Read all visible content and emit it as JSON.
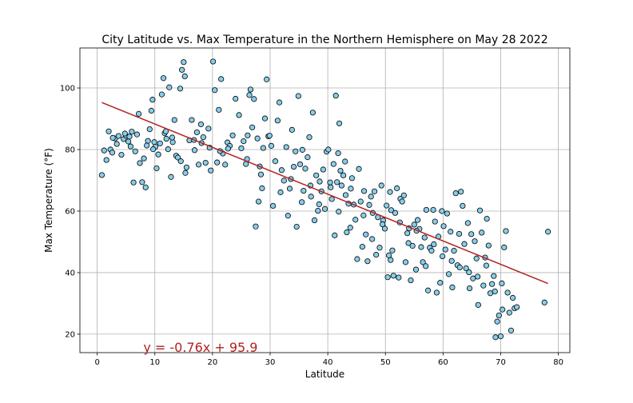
{
  "chart_data": {
    "type": "scatter",
    "title": "City Latitude vs. Max Temperature in the Northern Hemisphere on May 28 2022",
    "xlabel": "Latitude",
    "ylabel": "Max Temperature (°F)",
    "xlim": [
      -3,
      82
    ],
    "ylim": [
      14,
      113
    ],
    "xticks": [
      0,
      10,
      20,
      30,
      40,
      50,
      60,
      70,
      80
    ],
    "yticks": [
      20,
      40,
      60,
      80,
      100
    ],
    "grid": true,
    "marker_face": "#87ceeb",
    "marker_edge": "#000000",
    "regression": {
      "slope": -0.76,
      "intercept": 95.9,
      "x_range": [
        0.8,
        78.2
      ],
      "color": "#b22222",
      "equation": "y = -0.76x + 95.9"
    },
    "points": [
      [
        0.8,
        71.7
      ],
      [
        1.2,
        79.7
      ],
      [
        1.6,
        76.6
      ],
      [
        2.0,
        85.9
      ],
      [
        2.3,
        80.0
      ],
      [
        2.6,
        79.0
      ],
      [
        3.1,
        83.6
      ],
      [
        3.4,
        81.8
      ],
      [
        3.7,
        84.4
      ],
      [
        4.2,
        78.3
      ],
      [
        4.6,
        83.4
      ],
      [
        5.0,
        84.5
      ],
      [
        5.4,
        82.6
      ],
      [
        5.8,
        81.0
      ],
      [
        6.0,
        85.8
      ],
      [
        6.3,
        69.3
      ],
      [
        6.6,
        79.4
      ],
      [
        6.9,
        84.9
      ],
      [
        7.2,
        91.6
      ],
      [
        7.4,
        75.6
      ],
      [
        7.8,
        69.4
      ],
      [
        8.1,
        77.1
      ],
      [
        8.4,
        67.7
      ],
      [
        8.8,
        82.8
      ],
      [
        9.1,
        86.6
      ],
      [
        9.4,
        92.6
      ],
      [
        9.6,
        96.2
      ],
      [
        9.9,
        82.4
      ],
      [
        10.1,
        80.9
      ],
      [
        10.3,
        73.9
      ],
      [
        10.6,
        78.4
      ],
      [
        10.9,
        82.0
      ],
      [
        11.2,
        97.9
      ],
      [
        11.5,
        103.2
      ],
      [
        11.7,
        85.3
      ],
      [
        12.0,
        83.5
      ],
      [
        12.3,
        80.1
      ],
      [
        12.5,
        100.2
      ],
      [
        12.8,
        71.1
      ],
      [
        13.1,
        82.4
      ],
      [
        13.4,
        89.6
      ],
      [
        13.7,
        78.0
      ],
      [
        14.0,
        77.4
      ],
      [
        14.4,
        99.8
      ],
      [
        14.7,
        105.9
      ],
      [
        15.0,
        108.4
      ],
      [
        15.2,
        103.8
      ],
      [
        15.5,
        74.2
      ],
      [
        16.0,
        83.0
      ],
      [
        16.4,
        89.6
      ],
      [
        16.8,
        83.1
      ],
      [
        17.3,
        85.6
      ],
      [
        17.6,
        75.1
      ],
      [
        18.0,
        88.2
      ],
      [
        18.4,
        84.0
      ],
      [
        18.8,
        75.7
      ],
      [
        19.3,
        86.8
      ],
      [
        19.7,
        73.2
      ],
      [
        20.1,
        108.6
      ],
      [
        20.4,
        99.3
      ],
      [
        20.8,
        75.8
      ],
      [
        21.1,
        92.9
      ],
      [
        21.5,
        102.9
      ],
      [
        21.8,
        78.7
      ],
      [
        22.2,
        75.1
      ],
      [
        22.6,
        82.3
      ],
      [
        23.0,
        81.2
      ],
      [
        23.5,
        84.6
      ],
      [
        24.0,
        96.5
      ],
      [
        24.6,
        91.2
      ],
      [
        25.0,
        80.4
      ],
      [
        25.4,
        82.7
      ],
      [
        25.8,
        75.3
      ],
      [
        26.1,
        84.6
      ],
      [
        26.4,
        97.7
      ],
      [
        26.6,
        99.5
      ],
      [
        26.9,
        87.2
      ],
      [
        27.2,
        96.4
      ],
      [
        27.5,
        55.0
      ],
      [
        27.8,
        83.6
      ],
      [
        28.0,
        63.1
      ],
      [
        28.2,
        74.5
      ],
      [
        28.4,
        71.9
      ],
      [
        28.6,
        67.4
      ],
      [
        28.8,
        80.5
      ],
      [
        29.1,
        90.1
      ],
      [
        29.4,
        102.8
      ],
      [
        29.7,
        84.3
      ],
      [
        30.2,
        81.2
      ],
      [
        30.5,
        61.7
      ],
      [
        30.9,
        76.2
      ],
      [
        31.3,
        89.4
      ],
      [
        31.6,
        95.3
      ],
      [
        32.0,
        73.3
      ],
      [
        32.4,
        69.9
      ],
      [
        32.8,
        80.8
      ],
      [
        33.1,
        58.5
      ],
      [
        33.4,
        67.3
      ],
      [
        33.8,
        86.4
      ],
      [
        34.1,
        74.4
      ],
      [
        34.4,
        79.4
      ],
      [
        34.6,
        54.9
      ],
      [
        34.9,
        97.4
      ],
      [
        35.2,
        75.2
      ],
      [
        35.5,
        62.9
      ],
      [
        35.8,
        66.6
      ],
      [
        36.1,
        73.8
      ],
      [
        36.5,
        77.5
      ],
      [
        36.8,
        84.0
      ],
      [
        37.1,
        64.7
      ],
      [
        37.4,
        92.0
      ],
      [
        37.7,
        57.0
      ],
      [
        38.0,
        71.6
      ],
      [
        38.3,
        60.1
      ],
      [
        38.6,
        69.6
      ],
      [
        38.9,
        66.4
      ],
      [
        39.2,
        73.5
      ],
      [
        39.5,
        60.7
      ],
      [
        39.8,
        79.3
      ],
      [
        40.1,
        80.0
      ],
      [
        40.4,
        69.3
      ],
      [
        40.7,
        63.9
      ],
      [
        41.0,
        75.3
      ],
      [
        41.2,
        52.1
      ],
      [
        41.4,
        97.5
      ],
      [
        41.6,
        69.4
      ],
      [
        41.8,
        78.8
      ],
      [
        42.0,
        88.5
      ],
      [
        42.2,
        73.1
      ],
      [
        42.4,
        68.3
      ],
      [
        42.7,
        71.6
      ],
      [
        43.0,
        76.1
      ],
      [
        43.3,
        53.1
      ],
      [
        43.6,
        62.4
      ],
      [
        43.9,
        54.6
      ],
      [
        44.2,
        70.7
      ],
      [
        44.5,
        62.1
      ],
      [
        44.8,
        57.2
      ],
      [
        45.1,
        44.4
      ],
      [
        45.4,
        73.7
      ],
      [
        45.7,
        63.1
      ],
      [
        46.0,
        48.4
      ],
      [
        46.3,
        66.5
      ],
      [
        46.6,
        52.4
      ],
      [
        46.9,
        43.7
      ],
      [
        47.2,
        62.0
      ],
      [
        47.5,
        64.7
      ],
      [
        47.8,
        59.4
      ],
      [
        48.1,
        66.4
      ],
      [
        48.4,
        45.8
      ],
      [
        48.7,
        58.0
      ],
      [
        49.0,
        48.1
      ],
      [
        49.3,
        68.3
      ],
      [
        49.6,
        57.0
      ],
      [
        49.9,
        54.3
      ],
      [
        50.2,
        61.8
      ],
      [
        50.4,
        38.5
      ],
      [
        50.6,
        45.6
      ],
      [
        50.8,
        66.2
      ],
      [
        51.0,
        60.3
      ],
      [
        51.2,
        47.2
      ],
      [
        51.4,
        39.0
      ],
      [
        51.7,
        59.4
      ],
      [
        52.0,
        67.4
      ],
      [
        52.3,
        38.4
      ],
      [
        52.6,
        64.0
      ],
      [
        52.9,
        63.1
      ],
      [
        53.2,
        65.1
      ],
      [
        53.5,
        43.4
      ],
      [
        53.8,
        52.8
      ],
      [
        54.1,
        54.4
      ],
      [
        54.4,
        37.5
      ],
      [
        54.7,
        48.7
      ],
      [
        55.0,
        55.6
      ],
      [
        55.3,
        41.0
      ],
      [
        55.6,
        57.1
      ],
      [
        55.9,
        54.2
      ],
      [
        56.2,
        48.3
      ],
      [
        56.5,
        43.4
      ],
      [
        56.8,
        51.4
      ],
      [
        57.1,
        60.4
      ],
      [
        57.4,
        34.2
      ],
      [
        57.7,
        48.1
      ],
      [
        58.0,
        47.1
      ],
      [
        58.3,
        60.4
      ],
      [
        58.6,
        56.6
      ],
      [
        58.9,
        33.5
      ],
      [
        59.2,
        51.7
      ],
      [
        59.5,
        36.7
      ],
      [
        59.8,
        60.0
      ],
      [
        60.1,
        55.1
      ],
      [
        60.4,
        47.5
      ],
      [
        60.7,
        59.2
      ],
      [
        61.0,
        39.5
      ],
      [
        61.3,
        53.3
      ],
      [
        61.6,
        35.2
      ],
      [
        61.9,
        47.1
      ],
      [
        62.2,
        65.8
      ],
      [
        62.5,
        42.4
      ],
      [
        62.8,
        52.6
      ],
      [
        63.1,
        66.3
      ],
      [
        63.4,
        61.7
      ],
      [
        63.7,
        49.3
      ],
      [
        64.0,
        41.4
      ],
      [
        64.3,
        56.1
      ],
      [
        64.6,
        34.9
      ],
      [
        64.9,
        52.5
      ],
      [
        65.2,
        38.1
      ],
      [
        65.5,
        50.2
      ],
      [
        65.8,
        44.6
      ],
      [
        66.1,
        29.5
      ],
      [
        66.4,
        60.2
      ],
      [
        66.7,
        53.0
      ],
      [
        67.0,
        35.8
      ],
      [
        67.3,
        44.9
      ],
      [
        67.6,
        57.5
      ],
      [
        67.9,
        48.8
      ],
      [
        68.2,
        33.3
      ],
      [
        68.5,
        36.3
      ],
      [
        68.8,
        38.9
      ],
      [
        69.1,
        19.0
      ],
      [
        69.4,
        24.1
      ],
      [
        69.7,
        26.1
      ],
      [
        70.0,
        19.3
      ],
      [
        70.3,
        28.0
      ],
      [
        70.6,
        48.2
      ],
      [
        70.9,
        53.5
      ],
      [
        71.2,
        33.5
      ],
      [
        71.5,
        27.0
      ],
      [
        71.8,
        21.2
      ],
      [
        72.1,
        31.8
      ],
      [
        72.4,
        28.4
      ],
      [
        72.8,
        28.8
      ],
      [
        77.6,
        30.3
      ],
      [
        78.2,
        53.3
      ],
      [
        2.7,
        83.8
      ],
      [
        4.8,
        85.2
      ],
      [
        5.6,
        84.2
      ],
      [
        8.6,
        81.3
      ],
      [
        9.7,
        80.1
      ],
      [
        11.9,
        85.9
      ],
      [
        13.0,
        83.9
      ],
      [
        14.5,
        76.2
      ],
      [
        15.3,
        72.4
      ],
      [
        16.9,
        79.8
      ],
      [
        18.1,
        82.1
      ],
      [
        19.5,
        80.6
      ],
      [
        21.3,
        79.5
      ],
      [
        22.7,
        80.3
      ],
      [
        26.0,
        76.9
      ],
      [
        29.9,
        84.5
      ],
      [
        31.8,
        66.1
      ],
      [
        33.6,
        70.4
      ],
      [
        35.6,
        79.9
      ],
      [
        37.0,
        68.3
      ],
      [
        38.5,
        62.2
      ],
      [
        40.5,
        67.7
      ],
      [
        41.9,
        59.8
      ],
      [
        43.1,
        65.2
      ],
      [
        44.0,
        67.3
      ],
      [
        46.2,
        58.6
      ],
      [
        47.7,
        50.9
      ],
      [
        49.5,
        55.7
      ],
      [
        50.9,
        44.1
      ],
      [
        52.5,
        56.3
      ],
      [
        54.0,
        49.6
      ],
      [
        55.4,
        53.6
      ],
      [
        57.0,
        42.1
      ],
      [
        58.4,
        49.2
      ],
      [
        59.9,
        45.3
      ],
      [
        61.5,
        43.8
      ],
      [
        62.9,
        41.7
      ],
      [
        64.5,
        40.1
      ],
      [
        66.0,
        38.7
      ],
      [
        67.5,
        42.3
      ],
      [
        69.0,
        33.9
      ],
      [
        70.2,
        36.5
      ]
    ]
  }
}
